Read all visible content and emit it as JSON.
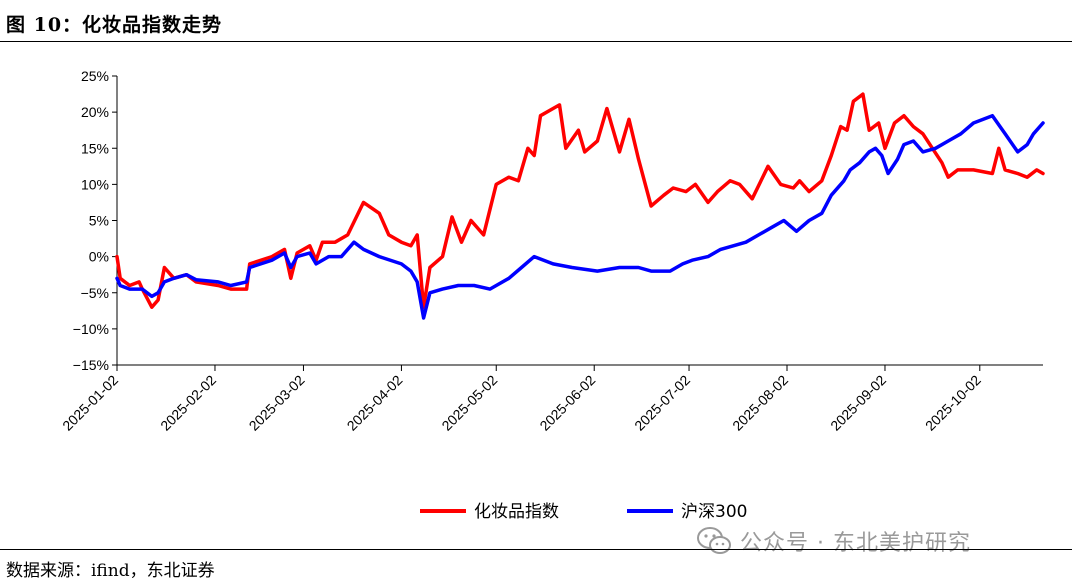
{
  "title": "图 10：化妆品指数走势",
  "source": "数据来源：ifind，东北证券",
  "watermark": "公众号 · 东北美护研究",
  "chart_data": {
    "type": "line",
    "title": "",
    "xlabel": "",
    "ylabel": "",
    "ylim": [
      -15,
      25
    ],
    "yticks": [
      -15,
      -10,
      -5,
      0,
      5,
      10,
      15,
      20,
      25
    ],
    "ytick_labels": [
      "−15%",
      "−10%",
      "−5%",
      "0%",
      "5%",
      "10%",
      "15%",
      "20%",
      "25%"
    ],
    "x_ticks": [
      "2025-01-02",
      "2025-02-02",
      "2025-03-02",
      "2025-04-02",
      "2025-05-02",
      "2025-06-02",
      "2025-07-02",
      "2025-08-02",
      "2025-09-02",
      "2025-10-02"
    ],
    "x_range": [
      "2025-01-02",
      "2025-10-22"
    ],
    "legend_position": "bottom",
    "grid": false,
    "series": [
      {
        "name": "化妆品指数",
        "color": "#ff0000",
        "points": [
          [
            "2025-01-02",
            0
          ],
          [
            "2025-01-03",
            -3
          ],
          [
            "2025-01-06",
            -4
          ],
          [
            "2025-01-09",
            -3.5
          ],
          [
            "2025-01-10",
            -4.5
          ],
          [
            "2025-01-13",
            -7
          ],
          [
            "2025-01-15",
            -6
          ],
          [
            "2025-01-17",
            -1.5
          ],
          [
            "2025-01-20",
            -3
          ],
          [
            "2025-01-24",
            -2.5
          ],
          [
            "2025-01-27",
            -3.5
          ],
          [
            "2025-02-03",
            -4
          ],
          [
            "2025-02-07",
            -4.5
          ],
          [
            "2025-02-12",
            -4.5
          ],
          [
            "2025-02-13",
            -1
          ],
          [
            "2025-02-20",
            0
          ],
          [
            "2025-02-24",
            1
          ],
          [
            "2025-02-26",
            -3
          ],
          [
            "2025-02-28",
            0.5
          ],
          [
            "2025-03-04",
            1.5
          ],
          [
            "2025-03-06",
            -0.5
          ],
          [
            "2025-03-08",
            2
          ],
          [
            "2025-03-12",
            2
          ],
          [
            "2025-03-16",
            3
          ],
          [
            "2025-03-21",
            7.5
          ],
          [
            "2025-03-26",
            6
          ],
          [
            "2025-03-29",
            3
          ],
          [
            "2025-04-02",
            2
          ],
          [
            "2025-04-05",
            1.5
          ],
          [
            "2025-04-07",
            3
          ],
          [
            "2025-04-09",
            -7
          ],
          [
            "2025-04-11",
            -1.5
          ],
          [
            "2025-04-15",
            0
          ],
          [
            "2025-04-18",
            5.5
          ],
          [
            "2025-04-21",
            2
          ],
          [
            "2025-04-24",
            5
          ],
          [
            "2025-04-28",
            3
          ],
          [
            "2025-05-02",
            10
          ],
          [
            "2025-05-06",
            11
          ],
          [
            "2025-05-09",
            10.5
          ],
          [
            "2025-05-12",
            15
          ],
          [
            "2025-05-14",
            14
          ],
          [
            "2025-05-16",
            19.5
          ],
          [
            "2025-05-20",
            20.5
          ],
          [
            "2025-05-22",
            21
          ],
          [
            "2025-05-24",
            15
          ],
          [
            "2025-05-28",
            17.5
          ],
          [
            "2025-05-30",
            14.5
          ],
          [
            "2025-06-03",
            16
          ],
          [
            "2025-06-06",
            20.5
          ],
          [
            "2025-06-10",
            14.5
          ],
          [
            "2025-06-13",
            19
          ],
          [
            "2025-06-16",
            13.5
          ],
          [
            "2025-06-20",
            7
          ],
          [
            "2025-06-24",
            8.5
          ],
          [
            "2025-06-27",
            9.5
          ],
          [
            "2025-07-01",
            9
          ],
          [
            "2025-07-04",
            10
          ],
          [
            "2025-07-08",
            7.5
          ],
          [
            "2025-07-11",
            9
          ],
          [
            "2025-07-15",
            10.5
          ],
          [
            "2025-07-18",
            10
          ],
          [
            "2025-07-22",
            8
          ],
          [
            "2025-07-27",
            12.5
          ],
          [
            "2025-07-31",
            10
          ],
          [
            "2025-08-04",
            9.5
          ],
          [
            "2025-08-06",
            10.5
          ],
          [
            "2025-08-09",
            9
          ],
          [
            "2025-08-13",
            10.5
          ],
          [
            "2025-08-16",
            14
          ],
          [
            "2025-08-19",
            18
          ],
          [
            "2025-08-21",
            17.5
          ],
          [
            "2025-08-23",
            21.5
          ],
          [
            "2025-08-26",
            22.5
          ],
          [
            "2025-08-28",
            17.5
          ],
          [
            "2025-08-31",
            18.5
          ],
          [
            "2025-09-02",
            15
          ],
          [
            "2025-09-05",
            18.5
          ],
          [
            "2025-09-08",
            19.5
          ],
          [
            "2025-09-11",
            18
          ],
          [
            "2025-09-14",
            17
          ],
          [
            "2025-09-17",
            15
          ],
          [
            "2025-09-20",
            13
          ],
          [
            "2025-09-22",
            11
          ],
          [
            "2025-09-25",
            12
          ],
          [
            "2025-09-30",
            12
          ],
          [
            "2025-10-06",
            11.5
          ],
          [
            "2025-10-08",
            15
          ],
          [
            "2025-10-10",
            12
          ],
          [
            "2025-10-14",
            11.5
          ],
          [
            "2025-10-17",
            11
          ],
          [
            "2025-10-20",
            12
          ],
          [
            "2025-10-22",
            11.5
          ]
        ]
      },
      {
        "name": "沪深300",
        "color": "#0000ff",
        "points": [
          [
            "2025-01-02",
            -3
          ],
          [
            "2025-01-03",
            -4
          ],
          [
            "2025-01-06",
            -4.5
          ],
          [
            "2025-01-10",
            -4.5
          ],
          [
            "2025-01-13",
            -5.5
          ],
          [
            "2025-01-15",
            -5
          ],
          [
            "2025-01-17",
            -3.5
          ],
          [
            "2025-01-20",
            -3
          ],
          [
            "2025-01-24",
            -2.5
          ],
          [
            "2025-01-27",
            -3.2
          ],
          [
            "2025-02-03",
            -3.5
          ],
          [
            "2025-02-07",
            -4
          ],
          [
            "2025-02-12",
            -3.5
          ],
          [
            "2025-02-13",
            -1.5
          ],
          [
            "2025-02-20",
            -0.5
          ],
          [
            "2025-02-24",
            0.5
          ],
          [
            "2025-02-26",
            -1.5
          ],
          [
            "2025-02-28",
            0
          ],
          [
            "2025-03-04",
            0.5
          ],
          [
            "2025-03-06",
            -1
          ],
          [
            "2025-03-10",
            0
          ],
          [
            "2025-03-14",
            0
          ],
          [
            "2025-03-18",
            2
          ],
          [
            "2025-03-21",
            1
          ],
          [
            "2025-03-26",
            0
          ],
          [
            "2025-04-02",
            -1
          ],
          [
            "2025-04-05",
            -2
          ],
          [
            "2025-04-07",
            -3.5
          ],
          [
            "2025-04-09",
            -8.5
          ],
          [
            "2025-04-11",
            -5
          ],
          [
            "2025-04-15",
            -4.5
          ],
          [
            "2025-04-20",
            -4
          ],
          [
            "2025-04-25",
            -4
          ],
          [
            "2025-04-30",
            -4.5
          ],
          [
            "2025-05-06",
            -3
          ],
          [
            "2025-05-10",
            -1.5
          ],
          [
            "2025-05-14",
            0
          ],
          [
            "2025-05-20",
            -1
          ],
          [
            "2025-05-26",
            -1.5
          ],
          [
            "2025-06-03",
            -2
          ],
          [
            "2025-06-10",
            -1.5
          ],
          [
            "2025-06-16",
            -1.5
          ],
          [
            "2025-06-20",
            -2
          ],
          [
            "2025-06-26",
            -2
          ],
          [
            "2025-06-30",
            -1
          ],
          [
            "2025-07-03",
            -0.5
          ],
          [
            "2025-07-08",
            0
          ],
          [
            "2025-07-12",
            1
          ],
          [
            "2025-07-16",
            1.5
          ],
          [
            "2025-07-20",
            2
          ],
          [
            "2025-07-24",
            3
          ],
          [
            "2025-07-28",
            4
          ],
          [
            "2025-08-01",
            5
          ],
          [
            "2025-08-05",
            3.5
          ],
          [
            "2025-08-09",
            5
          ],
          [
            "2025-08-13",
            6
          ],
          [
            "2025-08-16",
            8.5
          ],
          [
            "2025-08-20",
            10.5
          ],
          [
            "2025-08-22",
            12
          ],
          [
            "2025-08-25",
            13
          ],
          [
            "2025-08-28",
            14.5
          ],
          [
            "2025-08-30",
            15
          ],
          [
            "2025-09-01",
            14
          ],
          [
            "2025-09-03",
            11.5
          ],
          [
            "2025-09-06",
            13.5
          ],
          [
            "2025-09-08",
            15.5
          ],
          [
            "2025-09-11",
            16
          ],
          [
            "2025-09-14",
            14.5
          ],
          [
            "2025-09-18",
            15
          ],
          [
            "2025-09-22",
            16
          ],
          [
            "2025-09-26",
            17
          ],
          [
            "2025-09-30",
            18.5
          ],
          [
            "2025-10-06",
            19.5
          ],
          [
            "2025-10-10",
            17
          ],
          [
            "2025-10-14",
            14.5
          ],
          [
            "2025-10-17",
            15.5
          ],
          [
            "2025-10-19",
            17
          ],
          [
            "2025-10-22",
            18.5
          ]
        ]
      }
    ]
  }
}
